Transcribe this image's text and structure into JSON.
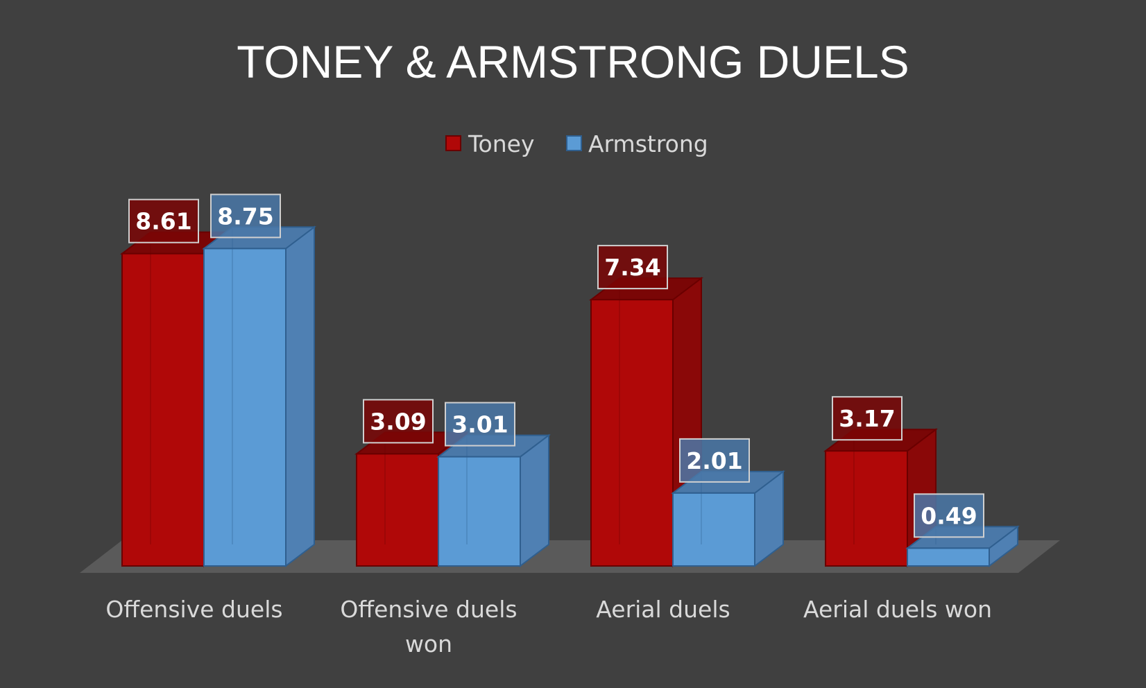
{
  "colors": {
    "background": "#404040",
    "floor": "#5a5a5a",
    "Toney": {
      "front": "#b00808",
      "side": "#8a0808",
      "top": "#7a0606",
      "stroke": "#6a0000"
    },
    "Armstrong": {
      "front": "#5b9bd5",
      "side": "#4f80b3",
      "top": "#4a78a8",
      "stroke": "#2f5f8f"
    }
  },
  "chart_data": {
    "type": "bar",
    "title": "TONEY & ARMSTRONG DUELS",
    "categories": [
      "Offensive duels",
      "Offensive duels won",
      "Aerial duels",
      "Aerial duels won"
    ],
    "category_lines": [
      [
        "Offensive duels"
      ],
      [
        "Offensive duels",
        "won"
      ],
      [
        "Aerial duels"
      ],
      [
        "Aerial duels won"
      ]
    ],
    "series": [
      {
        "name": "Toney",
        "values": [
          8.61,
          3.09,
          7.34,
          3.17
        ]
      },
      {
        "name": "Armstrong",
        "values": [
          8.75,
          3.01,
          2.01,
          0.49
        ]
      }
    ],
    "data_labels": [
      [
        "8.61",
        "3.09",
        "7.34",
        "3.17"
      ],
      [
        "8.75",
        "3.01",
        "2.01",
        "0.49"
      ]
    ],
    "legend_position": "top",
    "style": "3d-clustered-column",
    "grid": false
  }
}
